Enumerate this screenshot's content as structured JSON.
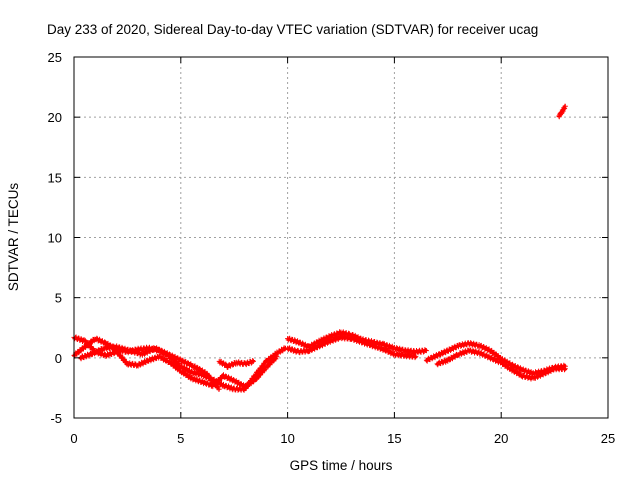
{
  "chart_data": {
    "type": "scatter",
    "title": "Day 233 of 2020, Sidereal Day-to-day VTEC variation (SDTVAR) for receiver ucag",
    "xlabel": "GPS time / hours",
    "ylabel": "SDTVAR / TECUs",
    "xlim": [
      0,
      25
    ],
    "ylim": [
      -5,
      25
    ],
    "xticks": [
      "0",
      "5",
      "10",
      "15",
      "20",
      "25"
    ],
    "yticks": [
      "-5",
      "0",
      "5",
      "10",
      "15",
      "20",
      "25"
    ],
    "grid": true,
    "legend": "none",
    "series": [
      {
        "name": "SDTVAR",
        "color": "#ff0000",
        "marker": "plus",
        "segments": [
          {
            "x": [
              0.0,
              0.5,
              1.0,
              1.5,
              2.0,
              2.5,
              3.0,
              3.5,
              4.0,
              4.5,
              5.0,
              5.5,
              6.0,
              6.5,
              7.0,
              7.5,
              8.0,
              8.5,
              9.0,
              9.5,
              9.9
            ],
            "y": [
              0.2,
              0.9,
              1.6,
              1.2,
              0.7,
              0.5,
              0.7,
              0.8,
              0.6,
              0.1,
              -0.7,
              -1.2,
              -1.4,
              -1.8,
              -2.3,
              -2.6,
              -2.6,
              -1.4,
              -0.3,
              0.4,
              0.8
            ]
          },
          {
            "x": [
              0.0,
              0.5,
              1.0,
              1.5,
              2.0,
              2.5,
              3.0,
              3.5,
              4.0,
              4.5,
              5.0,
              5.5,
              6.0,
              6.5,
              7.0,
              7.5,
              8.0,
              8.5,
              9.0,
              9.5
            ],
            "y": [
              1.7,
              1.4,
              0.5,
              0.2,
              0.5,
              -0.5,
              -0.6,
              -0.2,
              0.1,
              -0.4,
              -1.1,
              -1.7,
              -2.0,
              -2.3,
              -1.5,
              -1.9,
              -2.4,
              -1.8,
              -0.8,
              0.1
            ]
          },
          {
            "x": [
              0.3,
              0.8,
              1.4,
              2.0,
              2.6,
              3.2,
              3.8,
              4.4,
              5.0,
              5.6,
              6.2,
              6.8
            ],
            "y": [
              0.0,
              0.3,
              0.8,
              0.9,
              0.6,
              0.3,
              0.8,
              0.3,
              -0.2,
              -0.7,
              -1.3,
              -2.6
            ]
          },
          {
            "x": [
              6.8,
              7.2,
              7.6,
              8.0,
              8.4
            ],
            "y": [
              -0.3,
              -0.7,
              -0.4,
              -0.5,
              -0.3
            ]
          },
          {
            "x": [
              10.0,
              10.5,
              11.0,
              11.5,
              12.0,
              12.5,
              13.0,
              13.5,
              14.0,
              14.5,
              15.0,
              15.5,
              16.0,
              16.5
            ],
            "y": [
              1.6,
              1.3,
              0.9,
              1.4,
              1.8,
              2.1,
              1.9,
              1.5,
              1.3,
              1.1,
              0.8,
              0.6,
              0.5,
              0.6
            ]
          },
          {
            "x": [
              10.0,
              10.5,
              11.0,
              11.5,
              12.0,
              12.5,
              13.0,
              13.5,
              14.0,
              14.5,
              15.0,
              15.5,
              16.0
            ],
            "y": [
              0.8,
              0.5,
              0.6,
              1.0,
              1.4,
              1.7,
              1.6,
              1.3,
              1.0,
              0.7,
              0.3,
              0.2,
              0.1
            ]
          },
          {
            "x": [
              16.5,
              17.0,
              17.5,
              18.0,
              18.5,
              19.0,
              19.5,
              20.0,
              20.5,
              21.0,
              21.5,
              22.0,
              22.5,
              23.0
            ],
            "y": [
              -0.2,
              0.2,
              0.6,
              1.0,
              1.2,
              1.0,
              0.6,
              -0.1,
              -0.6,
              -1.0,
              -1.3,
              -1.1,
              -0.8,
              -0.7
            ]
          },
          {
            "x": [
              17.0,
              17.5,
              18.0,
              18.5,
              19.0,
              19.5,
              20.0,
              20.5,
              21.0,
              21.5,
              22.0,
              22.5,
              23.0
            ],
            "y": [
              -0.5,
              -0.2,
              0.3,
              0.6,
              0.4,
              0.0,
              -0.4,
              -1.0,
              -1.5,
              -1.7,
              -1.3,
              -0.9,
              -0.9
            ]
          },
          {
            "x": [
              22.7,
              22.8,
              22.9,
              23.0
            ],
            "y": [
              20.1,
              20.3,
              20.6,
              20.9
            ]
          }
        ]
      }
    ]
  }
}
